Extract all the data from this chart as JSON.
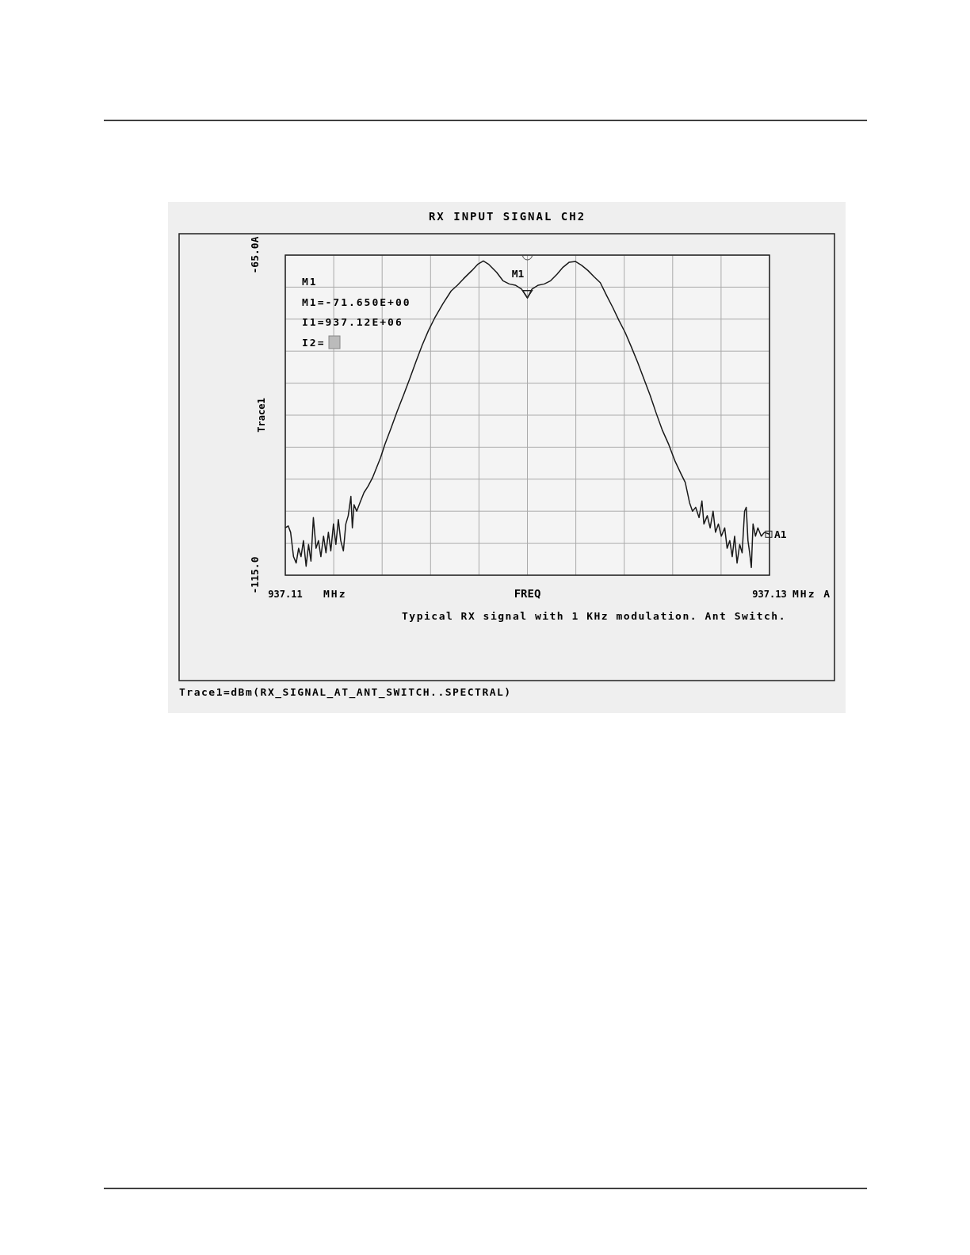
{
  "chart_data": {
    "type": "line",
    "title": "RX INPUT SIGNAL CH2",
    "xlabel": "FREQ",
    "ylabel": "Trace1",
    "xlim": [
      937.11,
      937.13
    ],
    "xticks": [
      {
        "value": 937.11,
        "label": "937.11"
      },
      {
        "value": 937.112,
        "label": null
      },
      {
        "value": 937.114,
        "label": null
      },
      {
        "value": 937.116,
        "label": null
      },
      {
        "value": 937.118,
        "label": null
      },
      {
        "value": 937.12,
        "label": null
      },
      {
        "value": 937.122,
        "label": null
      },
      {
        "value": 937.124,
        "label": null
      },
      {
        "value": 937.126,
        "label": null
      },
      {
        "value": 937.128,
        "label": null
      },
      {
        "value": 937.13,
        "label": "937.13"
      }
    ],
    "ylim": [
      -115,
      -65
    ],
    "yticks": [
      {
        "value": -115,
        "label": "-115.0"
      },
      {
        "value": -110,
        "label": null
      },
      {
        "value": -105,
        "label": null
      },
      {
        "value": -100,
        "label": null
      },
      {
        "value": -95,
        "label": null
      },
      {
        "value": -90,
        "label": null
      },
      {
        "value": -85,
        "label": null
      },
      {
        "value": -80,
        "label": null
      },
      {
        "value": -75,
        "label": null
      },
      {
        "value": -70,
        "label": null
      },
      {
        "value": -65,
        "label": "-65.0A"
      }
    ],
    "grid": true,
    "annotations": [
      {
        "text": "M1",
        "x": 937.12,
        "y": -71.65
      },
      "M1",
      "M1=-71.650E+00",
      "I1=937.12E+06",
      "I2=",
      "MHz",
      "MHz A",
      "Typical RX signal with 1 KHz modulation. Ant Switch.",
      "Trace1=dBm(RX_SIGNAL_AT_ANT_SWITCH..SPECTRAL)",
      {
        "text": "A1",
        "x": 937.13,
        "y": -108.6
      }
    ],
    "series": [
      {
        "color": "#1a1a1a",
        "x": [
          937.11,
          937.11012,
          937.11022,
          937.11034,
          937.11045,
          937.11055,
          937.11065,
          937.11075,
          937.11086,
          937.11096,
          937.11106,
          937.11116,
          937.11127,
          937.11137,
          937.11147,
          937.11158,
          937.11168,
          937.11178,
          937.11188,
          937.11199,
          937.11209,
          937.11219,
          937.11229,
          937.1124,
          937.1125,
          937.1126,
          937.11271,
          937.11277,
          937.11284,
          937.11295,
          937.11308,
          937.11325,
          937.11342,
          937.1136,
          937.11377,
          937.11394,
          937.11411,
          937.11437,
          937.11462,
          937.11488,
          937.11514,
          937.11539,
          937.11565,
          937.11591,
          937.11616,
          937.11651,
          937.11685,
          937.11711,
          937.11736,
          937.11771,
          937.11796,
          937.11818,
          937.11839,
          937.11873,
          937.11899,
          937.11925,
          937.1195,
          937.11976,
          937.12,
          937.12019,
          937.12045,
          937.1207,
          937.12096,
          937.12122,
          937.12147,
          937.12173,
          937.12199,
          937.12224,
          937.1225,
          937.12276,
          937.12301,
          937.12327,
          937.12353,
          937.12378,
          937.12404,
          937.1243,
          937.12455,
          937.12481,
          937.12507,
          937.12533,
          937.12558,
          937.12584,
          937.1261,
          937.12635,
          937.12652,
          937.1267,
          937.12682,
          937.12695,
          937.12709,
          937.12721,
          937.12729,
          937.12743,
          937.12755,
          937.12767,
          937.12777,
          937.12789,
          937.12801,
          937.12815,
          937.12825,
          937.12836,
          937.12846,
          937.12856,
          937.12866,
          937.12877,
          937.12887,
          937.12897,
          937.12904,
          937.12911,
          937.12918,
          937.12925,
          937.12932,
          937.12942,
          937.12952,
          937.12966,
          937.12979,
          937.13
        ],
        "values": [
          -107.6,
          -107.3,
          -108.3,
          -112.1,
          -113.1,
          -110.8,
          -112.1,
          -109.6,
          -113.6,
          -110.2,
          -112.8,
          -106.0,
          -110.8,
          -109.6,
          -112.1,
          -108.9,
          -111.5,
          -108.3,
          -111.2,
          -107.0,
          -110.2,
          -106.3,
          -109.6,
          -111.2,
          -107.0,
          -105.7,
          -102.7,
          -107.6,
          -104.0,
          -105.0,
          -103.7,
          -102.1,
          -101.1,
          -99.8,
          -98.2,
          -96.6,
          -94.6,
          -92.0,
          -89.4,
          -86.9,
          -84.3,
          -81.7,
          -79.1,
          -76.8,
          -74.9,
          -72.6,
          -70.6,
          -69.7,
          -68.7,
          -67.4,
          -66.4,
          -65.9,
          -66.4,
          -67.7,
          -69.0,
          -69.5,
          -69.7,
          -70.3,
          -71.7,
          -70.3,
          -69.7,
          -69.5,
          -69.0,
          -68.0,
          -66.9,
          -66.1,
          -66.0,
          -66.6,
          -67.4,
          -68.4,
          -69.3,
          -71.3,
          -73.2,
          -75.2,
          -77.1,
          -79.4,
          -81.7,
          -84.3,
          -86.9,
          -89.8,
          -92.4,
          -94.6,
          -97.2,
          -99.2,
          -100.5,
          -103.7,
          -105.0,
          -104.4,
          -106.0,
          -103.4,
          -107.0,
          -105.7,
          -107.6,
          -105.0,
          -108.3,
          -107.0,
          -108.9,
          -107.6,
          -110.8,
          -109.6,
          -112.1,
          -108.9,
          -113.1,
          -110.2,
          -111.5,
          -105.0,
          -104.4,
          -109.6,
          -111.5,
          -113.8,
          -107.0,
          -108.9,
          -107.6,
          -108.9,
          -108.3,
          -108.6
        ]
      }
    ]
  }
}
